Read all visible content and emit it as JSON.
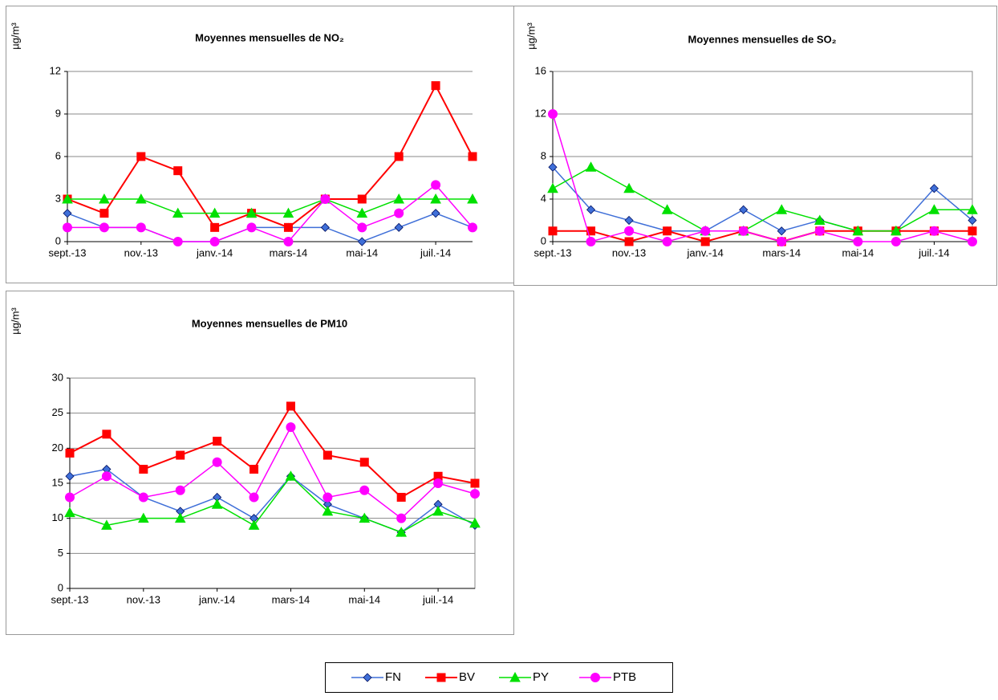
{
  "chart_data": [
    {
      "type": "line",
      "title": "Moyennes mensuelles de NO₂",
      "ylabel": "µg/m³",
      "categories": [
        "sept.-13",
        null,
        "nov.-13",
        null,
        "janv.-14",
        null,
        "mars-14",
        null,
        "mai-14",
        null,
        "juil.-14",
        null
      ],
      "ylim": [
        0,
        12
      ],
      "yticks": [
        0,
        3,
        6,
        9,
        12
      ],
      "grid": true,
      "series": [
        {
          "name": "FN",
          "color": "#3f6fd8",
          "marker": "diamond",
          "values": [
            2,
            1,
            1,
            0,
            0,
            1,
            1,
            1,
            0,
            1,
            2,
            1
          ]
        },
        {
          "name": "BV",
          "color": "#ff0000",
          "marker": "square",
          "values": [
            3,
            2,
            6,
            5,
            1,
            2,
            1,
            3,
            3,
            6,
            11,
            6
          ]
        },
        {
          "name": "PY",
          "color": "#00e000",
          "marker": "triangle",
          "values": [
            3,
            3,
            3,
            2,
            2,
            2,
            2,
            3,
            2,
            3,
            3,
            3
          ]
        },
        {
          "name": "PTB",
          "color": "#ff00ff",
          "marker": "circle",
          "values": [
            1,
            1,
            1,
            0,
            0,
            1,
            0,
            3,
            1,
            2,
            4,
            1
          ]
        }
      ]
    },
    {
      "type": "line",
      "title": "Moyennes mensuelles de SO₂",
      "ylabel": "µg/m³",
      "categories": [
        "sept.-13",
        null,
        "nov.-13",
        null,
        "janv.-14",
        null,
        "mars-14",
        null,
        "mai-14",
        null,
        "juil.-14",
        null
      ],
      "ylim": [
        0,
        16
      ],
      "yticks": [
        0,
        4,
        8,
        12,
        16
      ],
      "grid": true,
      "series": [
        {
          "color": "#3f6fd8",
          "marker": "diamond",
          "values": [
            7,
            3,
            2,
            1,
            1,
            3,
            1,
            2,
            1,
            1,
            5,
            2
          ]
        },
        {
          "color": "#ff0000",
          "marker": "square",
          "values": [
            1,
            1,
            0,
            1,
            0,
            1,
            0,
            1,
            1,
            1,
            1,
            1
          ]
        },
        {
          "color": "#00e000",
          "marker": "triangle",
          "values": [
            5,
            7,
            5,
            3,
            1,
            1,
            3,
            2,
            1,
            1,
            3,
            3
          ]
        },
        {
          "color": "#ff00ff",
          "marker": "circle",
          "values": [
            12,
            0,
            1,
            0,
            1,
            1,
            0,
            1,
            0,
            0,
            1,
            0
          ]
        }
      ]
    },
    {
      "type": "line",
      "title": "Moyennes mensuelles de PM10",
      "ylabel": "µg/m³",
      "categories": [
        "sept.-13",
        null,
        "nov.-13",
        null,
        "janv.-14",
        null,
        "mars-14",
        null,
        "mai-14",
        null,
        "juil.-14",
        null
      ],
      "ylim": [
        0,
        30
      ],
      "yticks": [
        0,
        5,
        10,
        15,
        20,
        25,
        30
      ],
      "grid": true,
      "series": [
        {
          "color": "#3f6fd8",
          "marker": "diamond",
          "values": [
            16,
            17,
            13,
            11,
            13,
            10,
            16,
            12,
            10,
            8,
            12,
            9
          ]
        },
        {
          "color": "#ff0000",
          "marker": "square",
          "values": [
            19.3,
            22,
            17,
            19,
            21,
            17,
            26,
            19,
            18,
            13,
            16,
            15
          ]
        },
        {
          "color": "#00e000",
          "marker": "triangle",
          "values": [
            10.8,
            9,
            10,
            10,
            12,
            9,
            16,
            11,
            10,
            8,
            11,
            9.3
          ]
        },
        {
          "color": "#ff00ff",
          "marker": "circle",
          "values": [
            13,
            16,
            13,
            14,
            18,
            13,
            23,
            13,
            14,
            10,
            15,
            13.5
          ]
        }
      ]
    }
  ]
}
